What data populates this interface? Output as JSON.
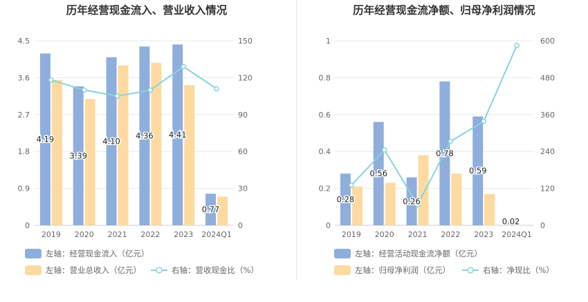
{
  "colors": {
    "bar_primary": "#8faedc",
    "bar_secondary": "#fddaa0",
    "line": "#88d3de",
    "grid": "#e8e8e8",
    "axis_text": "#666666",
    "title_text": "#333333",
    "label_text": "#222222",
    "legend_text": "#666666"
  },
  "chart_data": [
    {
      "type": "bar",
      "title": "历年经营现金流入、营业收入情况",
      "categories": [
        "2019",
        "2020",
        "2021",
        "2022",
        "2023",
        "2024Q1"
      ],
      "left_axis": {
        "ticks": [
          "0",
          "0.9",
          "1.8",
          "2.7",
          "3.6",
          "4.5"
        ],
        "range": [
          0,
          4.5
        ]
      },
      "right_axis": {
        "ticks": [
          "0",
          "30",
          "60",
          "90",
          "120",
          "150"
        ],
        "range": [
          0,
          150
        ]
      },
      "grid": true,
      "legend_position": "bottom",
      "series": [
        {
          "name": "左轴：经营现金流入（亿元）",
          "kind": "bar",
          "axis": "left",
          "color": "#8faedc",
          "values": [
            4.19,
            3.39,
            4.1,
            4.36,
            4.41,
            0.77
          ],
          "labels": [
            "4.19",
            "3.39",
            "4.10",
            "4.36",
            "4.41",
            "0.77"
          ]
        },
        {
          "name": "左轴：营业总收入（亿元）",
          "kind": "bar",
          "axis": "left",
          "color": "#fddaa0",
          "values": [
            3.55,
            3.08,
            3.9,
            3.96,
            3.42,
            0.7
          ]
        },
        {
          "name": "右轴：营收现金比（%）",
          "kind": "line",
          "axis": "right",
          "color": "#88d3de",
          "values": [
            118,
            110,
            105,
            110,
            129,
            111
          ]
        }
      ]
    },
    {
      "type": "bar",
      "title": "历年经营现金流净额、归母净利润情况",
      "categories": [
        "2019",
        "2020",
        "2021",
        "2022",
        "2023",
        "2024Q1"
      ],
      "left_axis": {
        "ticks": [
          "0",
          "0.2",
          "0.4",
          "0.6",
          "0.8",
          "1"
        ],
        "range": [
          0,
          1
        ]
      },
      "right_axis": {
        "ticks": [
          "0",
          "120",
          "240",
          "360",
          "480",
          "600"
        ],
        "range": [
          0,
          600
        ]
      },
      "grid": true,
      "legend_position": "bottom",
      "series": [
        {
          "name": "左轴：经营活动现金流净额（亿元）",
          "kind": "bar",
          "axis": "left",
          "color": "#8faedc",
          "values": [
            0.28,
            0.56,
            0.26,
            0.78,
            0.59,
            0.02
          ],
          "labels": [
            "0.28",
            "0.56",
            "0.26",
            "0.78",
            "0.59",
            "0.02"
          ]
        },
        {
          "name": "左轴：归母净利润（亿元）",
          "kind": "bar",
          "axis": "left",
          "color": "#fddaa0",
          "values": [
            0.21,
            0.23,
            0.38,
            0.28,
            0.17,
            0.0
          ]
        },
        {
          "name": "右轴：净现比（%）",
          "kind": "line",
          "axis": "right",
          "color": "#88d3de",
          "values": [
            130,
            245,
            67,
            273,
            338,
            585
          ]
        }
      ]
    }
  ]
}
